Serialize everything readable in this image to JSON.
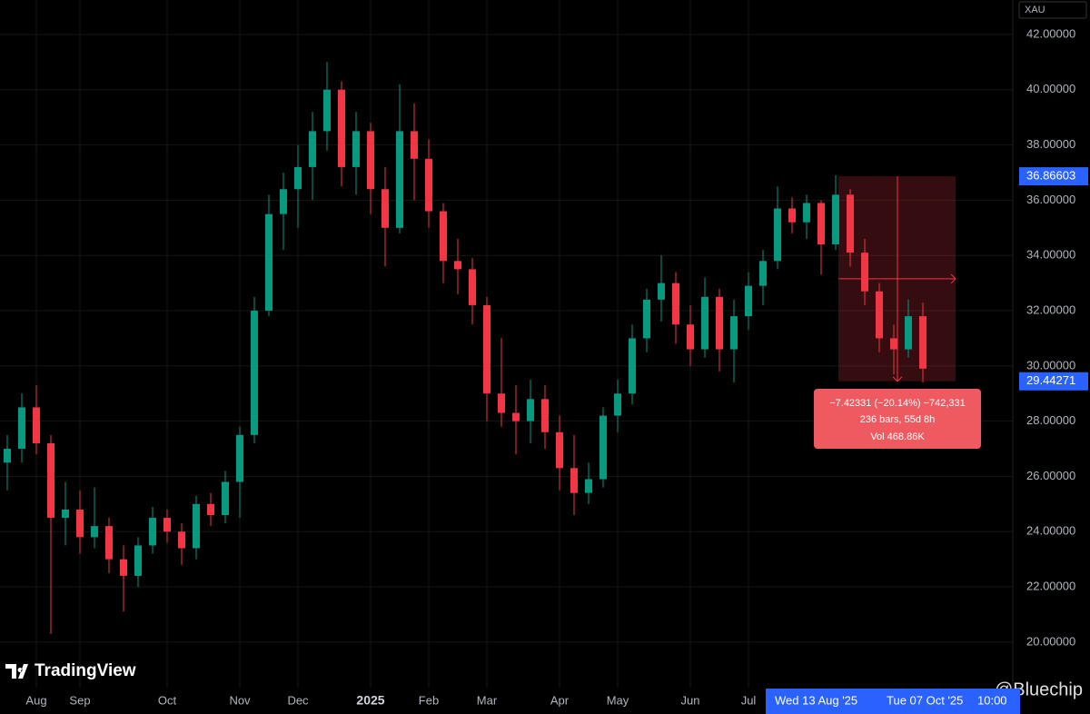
{
  "chart_data": {
    "type": "candlestick",
    "symbol": "XAU",
    "up_color": "#089981",
    "down_color": "#f23645",
    "grid": true,
    "categories": [
      null,
      null,
      "Aug",
      null,
      null,
      "Sep",
      null,
      null,
      null,
      null,
      null,
      "Oct",
      null,
      null,
      null,
      null,
      "Nov",
      null,
      null,
      null,
      "Dec",
      null,
      null,
      null,
      null,
      "2025",
      null,
      null,
      null,
      "Feb",
      null,
      null,
      null,
      "Mar",
      null,
      null,
      null,
      null,
      "Apr",
      null,
      null,
      null,
      "May",
      null,
      null,
      null,
      null,
      "Jun",
      null,
      null,
      null,
      "Jul",
      null,
      null,
      null,
      null,
      null,
      null,
      null,
      null,
      null,
      null,
      null,
      null
    ],
    "open": [
      26.5,
      27,
      28.5,
      27.2,
      24.5,
      24.8,
      23.8,
      24.2,
      23,
      22.4,
      23.5,
      24.5,
      24,
      23.4,
      25,
      24.6,
      25.8,
      27.5,
      32,
      35.5,
      36.4,
      37.2,
      38.5,
      40,
      37.2,
      38.5,
      36.4,
      35,
      38.5,
      37.5,
      35.6,
      33.8,
      33.5,
      32.2,
      29,
      28.3,
      28,
      28.8,
      27.6,
      26.3,
      25.4,
      25.9,
      28.2,
      29,
      31,
      32.4,
      33,
      31.5,
      30.6,
      32.5,
      30.6,
      31.8,
      32.9,
      33.8,
      35.7,
      35.2,
      35.9,
      34.4,
      36.2,
      34.1,
      32.7,
      31,
      30.6,
      31.8
    ],
    "high": [
      27.5,
      29,
      29.3,
      27.5,
      25.8,
      25.5,
      25.6,
      24.5,
      23.5,
      23.8,
      24.9,
      24.8,
      24.3,
      25.3,
      25.4,
      26.2,
      27.8,
      32.5,
      36.2,
      37,
      38,
      39.2,
      41,
      40.3,
      39.2,
      38.8,
      37.2,
      40.2,
      39.5,
      38.2,
      35.9,
      34.6,
      33.9,
      32.5,
      31,
      29.3,
      29.5,
      29.3,
      28.2,
      27.5,
      26.5,
      28.5,
      29.5,
      31.5,
      32.8,
      34,
      33.4,
      32.2,
      33.2,
      32.8,
      32.4,
      33.4,
      34.2,
      36.5,
      36.1,
      36.2,
      36,
      36.9,
      36.4,
      34.6,
      33,
      31.5,
      32.4,
      32.3
    ],
    "low": [
      25.5,
      26.5,
      26.8,
      20.3,
      23.5,
      23.2,
      23.4,
      22.5,
      21.1,
      22,
      23.2,
      23.6,
      22.8,
      23,
      24.2,
      24.3,
      24.5,
      27.2,
      31.8,
      34.2,
      35,
      36,
      37.8,
      36.5,
      36.2,
      35.5,
      33.6,
      34.8,
      36,
      35,
      33,
      32.6,
      31.5,
      28,
      27.8,
      26.8,
      27.2,
      27,
      25.5,
      24.6,
      25,
      25.6,
      27.6,
      28.6,
      30.5,
      31.6,
      30.8,
      30,
      30.3,
      29.8,
      29.4,
      31.3,
      32.2,
      33.5,
      34.8,
      34.6,
      33.3,
      34.2,
      33.6,
      32.2,
      30.5,
      29.7,
      30.3,
      29.4
    ],
    "close": [
      27,
      28.5,
      27.2,
      24.5,
      24.8,
      23.8,
      24.2,
      23,
      22.4,
      23.5,
      24.5,
      24,
      23.4,
      25,
      24.6,
      25.8,
      27.5,
      32,
      35.5,
      36.4,
      37.2,
      38.5,
      40,
      37.2,
      38.5,
      36.4,
      35,
      38.5,
      37.5,
      35.6,
      33.8,
      33.5,
      32.2,
      29,
      28.3,
      28,
      28.8,
      27.6,
      26.3,
      25.4,
      25.9,
      28.2,
      29,
      31,
      32.4,
      33,
      31.5,
      30.6,
      32.5,
      30.6,
      31.8,
      32.9,
      33.8,
      35.7,
      35.2,
      35.9,
      34.4,
      36.2,
      34.1,
      32.7,
      31,
      30.6,
      31.8,
      29.9
    ],
    "ylim": [
      18.35,
      43.25
    ],
    "yticks": [
      {
        "value": 20,
        "label": "20.00000"
      },
      {
        "value": 22,
        "label": "22.00000"
      },
      {
        "value": 24,
        "label": "24.00000"
      },
      {
        "value": 26,
        "label": "26.00000"
      },
      {
        "value": 28,
        "label": "28.00000"
      },
      {
        "value": 30,
        "label": "30.00000"
      },
      {
        "value": 32,
        "label": "32.00000"
      },
      {
        "value": 34,
        "label": "34.00000"
      },
      {
        "value": 36,
        "label": "36.00000"
      },
      {
        "value": 38,
        "label": "38.00000"
      },
      {
        "value": 40,
        "label": "40.00000"
      },
      {
        "value": 42,
        "label": "42.00000"
      }
    ],
    "measure": {
      "start_price": 36.86603,
      "end_price": 29.44271,
      "change_label": "−7.42331 (−20.14%) −742,331",
      "bars_label": "236 bars, 55d 8h",
      "volume_label": "Vol 468.86K",
      "start_date": "Wed 13 Aug '25",
      "end_date": "Tue 07 Oct '25",
      "end_time": "10:00"
    }
  },
  "branding": {
    "logo": "TradingView",
    "watermark": "@Bluechip"
  }
}
